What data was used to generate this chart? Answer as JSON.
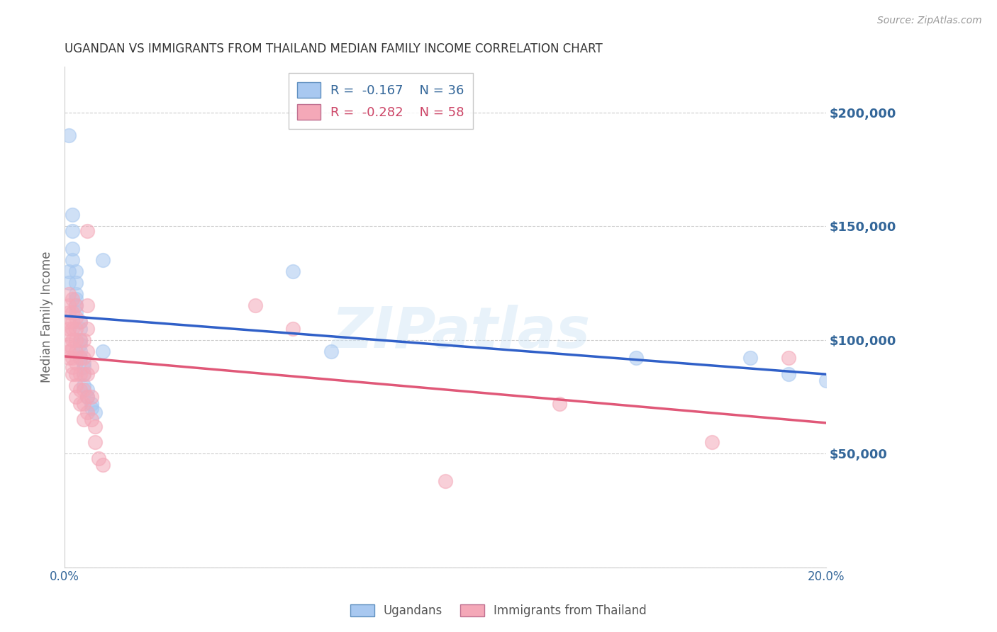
{
  "title": "UGANDAN VS IMMIGRANTS FROM THAILAND MEDIAN FAMILY INCOME CORRELATION CHART",
  "source": "Source: ZipAtlas.com",
  "ylabel": "Median Family Income",
  "xlim": [
    0,
    0.2
  ],
  "ylim": [
    0,
    220000
  ],
  "yticks": [
    0,
    50000,
    100000,
    150000,
    200000
  ],
  "ytick_labels": [
    "",
    "$50,000",
    "$100,000",
    "$150,000",
    "$200,000"
  ],
  "xticks": [
    0.0,
    0.05,
    0.1,
    0.15,
    0.2
  ],
  "xtick_labels": [
    "0.0%",
    "",
    "",
    "",
    "20.0%"
  ],
  "watermark": "ZIPatlas",
  "ugandan_color": "#a8c8f0",
  "thailand_color": "#f4a8b8",
  "ugandan_line_color": "#3060c8",
  "thailand_line_color": "#e05878",
  "ugandan_points": [
    [
      0.001,
      190000
    ],
    [
      0.001,
      130000
    ],
    [
      0.001,
      125000
    ],
    [
      0.002,
      155000
    ],
    [
      0.002,
      148000
    ],
    [
      0.002,
      140000
    ],
    [
      0.002,
      135000
    ],
    [
      0.003,
      130000
    ],
    [
      0.003,
      125000
    ],
    [
      0.003,
      120000
    ],
    [
      0.003,
      118000
    ],
    [
      0.003,
      115000
    ],
    [
      0.003,
      112000
    ],
    [
      0.004,
      108000
    ],
    [
      0.004,
      105000
    ],
    [
      0.004,
      100000
    ],
    [
      0.004,
      98000
    ],
    [
      0.004,
      95000
    ],
    [
      0.004,
      92000
    ],
    [
      0.005,
      90000
    ],
    [
      0.005,
      88000
    ],
    [
      0.005,
      85000
    ],
    [
      0.005,
      80000
    ],
    [
      0.006,
      78000
    ],
    [
      0.006,
      75000
    ],
    [
      0.007,
      72000
    ],
    [
      0.007,
      70000
    ],
    [
      0.008,
      68000
    ],
    [
      0.01,
      135000
    ],
    [
      0.01,
      95000
    ],
    [
      0.06,
      130000
    ],
    [
      0.07,
      95000
    ],
    [
      0.15,
      92000
    ],
    [
      0.18,
      92000
    ],
    [
      0.19,
      85000
    ],
    [
      0.2,
      82000
    ]
  ],
  "thailand_points": [
    [
      0.001,
      120000
    ],
    [
      0.001,
      115000
    ],
    [
      0.001,
      112000
    ],
    [
      0.001,
      108000
    ],
    [
      0.001,
      105000
    ],
    [
      0.001,
      102000
    ],
    [
      0.001,
      98000
    ],
    [
      0.001,
      95000
    ],
    [
      0.001,
      92000
    ],
    [
      0.002,
      118000
    ],
    [
      0.002,
      112000
    ],
    [
      0.002,
      108000
    ],
    [
      0.002,
      105000
    ],
    [
      0.002,
      100000
    ],
    [
      0.002,
      96000
    ],
    [
      0.002,
      92000
    ],
    [
      0.002,
      88000
    ],
    [
      0.002,
      85000
    ],
    [
      0.003,
      115000
    ],
    [
      0.003,
      110000
    ],
    [
      0.003,
      105000
    ],
    [
      0.003,
      100000
    ],
    [
      0.003,
      95000
    ],
    [
      0.003,
      90000
    ],
    [
      0.003,
      85000
    ],
    [
      0.003,
      80000
    ],
    [
      0.003,
      75000
    ],
    [
      0.004,
      108000
    ],
    [
      0.004,
      100000
    ],
    [
      0.004,
      92000
    ],
    [
      0.004,
      85000
    ],
    [
      0.004,
      78000
    ],
    [
      0.004,
      72000
    ],
    [
      0.005,
      100000
    ],
    [
      0.005,
      92000
    ],
    [
      0.005,
      85000
    ],
    [
      0.005,
      78000
    ],
    [
      0.005,
      72000
    ],
    [
      0.005,
      65000
    ],
    [
      0.006,
      148000
    ],
    [
      0.006,
      115000
    ],
    [
      0.006,
      105000
    ],
    [
      0.006,
      95000
    ],
    [
      0.006,
      85000
    ],
    [
      0.006,
      75000
    ],
    [
      0.006,
      68000
    ],
    [
      0.007,
      88000
    ],
    [
      0.007,
      75000
    ],
    [
      0.007,
      65000
    ],
    [
      0.008,
      62000
    ],
    [
      0.008,
      55000
    ],
    [
      0.009,
      48000
    ],
    [
      0.01,
      45000
    ],
    [
      0.05,
      115000
    ],
    [
      0.06,
      105000
    ],
    [
      0.1,
      38000
    ],
    [
      0.13,
      72000
    ],
    [
      0.17,
      55000
    ],
    [
      0.19,
      92000
    ]
  ],
  "background_color": "#ffffff",
  "grid_color": "#cccccc",
  "title_color": "#333333",
  "tick_label_color": "#336699"
}
